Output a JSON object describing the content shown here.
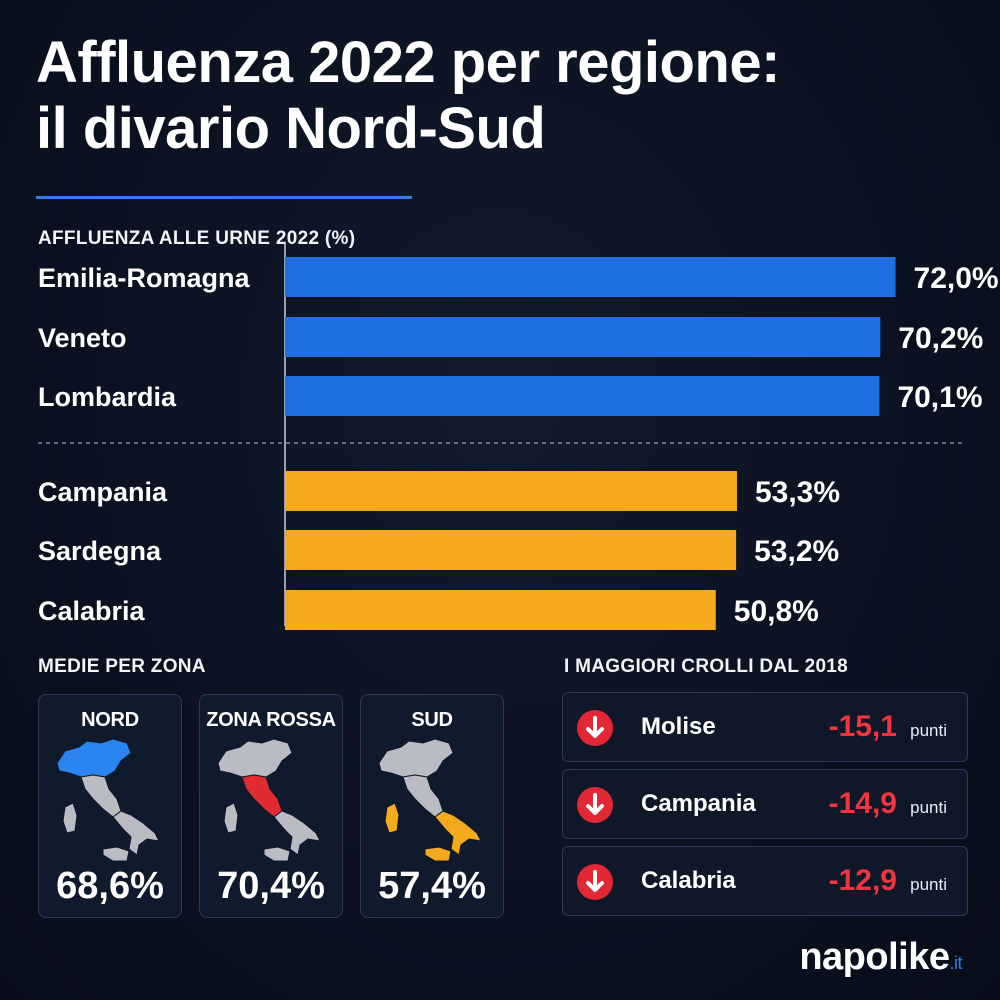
{
  "title_line1": "Affluenza 2022 per regione:",
  "title_line2": "il divario Nord-Sud",
  "chart_data": {
    "type": "bar",
    "orientation": "horizontal",
    "title": "AFFLUENZA ALLE URNE 2022 (%)",
    "categories": [
      "Emilia-Romagna",
      "Veneto",
      "Lombardia",
      "Campania",
      "Sardegna",
      "Calabria"
    ],
    "values": [
      72.0,
      70.2,
      70.1,
      53.3,
      53.2,
      50.8
    ],
    "value_labels": [
      "72,0%",
      "70,2%",
      "70,1%",
      "53,3%",
      "53,2%",
      "50,8%"
    ],
    "groups": [
      "nord",
      "nord",
      "nord",
      "sud",
      "sud",
      "sud"
    ],
    "group_colors": {
      "nord": "#1f6fe0",
      "sud": "#f5a91c"
    },
    "xlim": [
      0,
      100
    ],
    "grid": false,
    "legend": "none"
  },
  "zones": {
    "label": "MEDIE PER ZONA",
    "items": [
      {
        "name": "NORD",
        "value": "68,6%",
        "color": "#2a85f0",
        "highlight": "nord"
      },
      {
        "name": "ZONA ROSSA",
        "value": "70,4%",
        "color": "#e02a30",
        "highlight": "centro"
      },
      {
        "name": "SUD",
        "value": "57,4%",
        "color": "#f5a91c",
        "highlight": "sud"
      }
    ]
  },
  "drops": {
    "label": "I MAGGIORI CROLLI DAL 2018",
    "unit": "punti",
    "items": [
      {
        "region": "Molise",
        "value": "-15,1"
      },
      {
        "region": "Campania",
        "value": "-14,9"
      },
      {
        "region": "Calabria",
        "value": "-12,9"
      }
    ]
  },
  "brand": {
    "name": "napolike",
    "tld": ".it"
  }
}
